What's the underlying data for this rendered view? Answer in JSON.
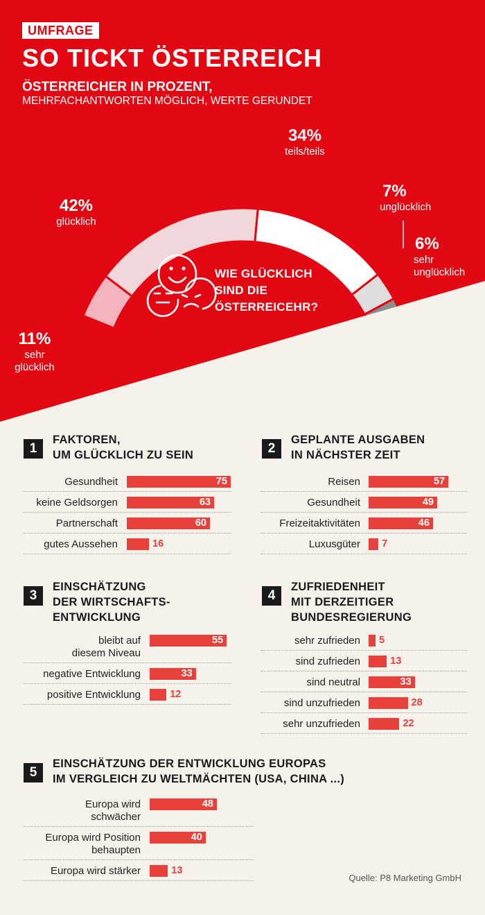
{
  "header": {
    "badge": "UMFRAGE",
    "title": "SO TICKT ÖSTERREICH",
    "subtitle_bold": "ÖSTERREICHER IN PROZENT,",
    "subtitle_regular": "MEHRFACHANTWORTEN MÖGLICH, WERTE GERUNDET"
  },
  "colors": {
    "red": "#e30613",
    "bar": "#e8403b",
    "background": "#f6f1ea",
    "dark": "#1a1a1a"
  },
  "chart_data": [
    {
      "type": "pie",
      "title": "WIE GLÜCKLICH SIND DIE ÖSTERREICEHR?",
      "icon": "smiley-faces-icon",
      "slices": [
        {
          "label": "sehr glücklich",
          "pct_label": "11%",
          "value": 11,
          "color": "#f3b3bd"
        },
        {
          "label": "glücklich",
          "pct_label": "42%",
          "value": 42,
          "color": "#f1d6da"
        },
        {
          "label": "teils/teils",
          "pct_label": "34%",
          "value": 34,
          "color": "#ffffff"
        },
        {
          "label": "unglücklich",
          "pct_label": "7%",
          "value": 7,
          "color": "#dedede"
        },
        {
          "label": "sehr unglücklich",
          "pct_label": "6%",
          "value": 6,
          "color": "#8d8d8d"
        }
      ]
    },
    {
      "type": "bar",
      "number": "1",
      "title_lines": [
        "FAKTOREN,",
        "UM GLÜCKLICH ZU SEIN"
      ],
      "rows": [
        {
          "label": [
            "Gesundheit"
          ],
          "value": 75
        },
        {
          "label": [
            "keine Geldsorgen"
          ],
          "value": 63
        },
        {
          "label": [
            "Partnerschaft"
          ],
          "value": 60
        },
        {
          "label": [
            "gutes Aussehen"
          ],
          "value": 16
        }
      ]
    },
    {
      "type": "bar",
      "number": "2",
      "title_lines": [
        "GEPLANTE AUSGABEN",
        "IN NÄCHSTER ZEIT"
      ],
      "rows": [
        {
          "label": [
            "Reisen"
          ],
          "value": 57
        },
        {
          "label": [
            "Gesundheit"
          ],
          "value": 49
        },
        {
          "label": [
            "Freizeitaktivitäten"
          ],
          "value": 46
        },
        {
          "label": [
            "Luxusgüter"
          ],
          "value": 7
        }
      ]
    },
    {
      "type": "bar",
      "number": "3",
      "title_lines": [
        "EINSCHÄTZUNG",
        "DER WIRTSCHAFTS-",
        "ENTWICKLUNG"
      ],
      "rows": [
        {
          "label": [
            "bleibt auf",
            "diesem Niveau"
          ],
          "value": 55
        },
        {
          "label": [
            "negative Entwicklung"
          ],
          "value": 33
        },
        {
          "label": [
            "positive Entwicklung"
          ],
          "value": 12
        }
      ]
    },
    {
      "type": "bar",
      "number": "4",
      "title_lines": [
        "ZUFRIEDENHEIT",
        "MIT DERZEITIGER",
        "BUNDESREGIERUNG"
      ],
      "rows": [
        {
          "label": [
            "sehr zufrieden"
          ],
          "value": 5
        },
        {
          "label": [
            "sind zufrieden"
          ],
          "value": 13
        },
        {
          "label": [
            "sind neutral"
          ],
          "value": 33
        },
        {
          "label": [
            "sind unzufrieden"
          ],
          "value": 28
        },
        {
          "label": [
            "sehr unzufrieden"
          ],
          "value": 22
        }
      ]
    },
    {
      "type": "bar",
      "number": "5",
      "title_lines": [
        "EINSCHÄTZUNG DER ENTWICKLUNG EUROPAS",
        "IM VERGLEICH ZU WELTMÄCHTEN (USA, CHINA ...)"
      ],
      "rows": [
        {
          "label": [
            "Europa wird",
            "schwächer"
          ],
          "value": 48
        },
        {
          "label": [
            "Europa wird Position",
            "behaupten"
          ],
          "value": 40
        },
        {
          "label": [
            "Europa wird stärker"
          ],
          "value": 13
        }
      ]
    }
  ],
  "source": "Quelle: P8 Marketing GmbH"
}
